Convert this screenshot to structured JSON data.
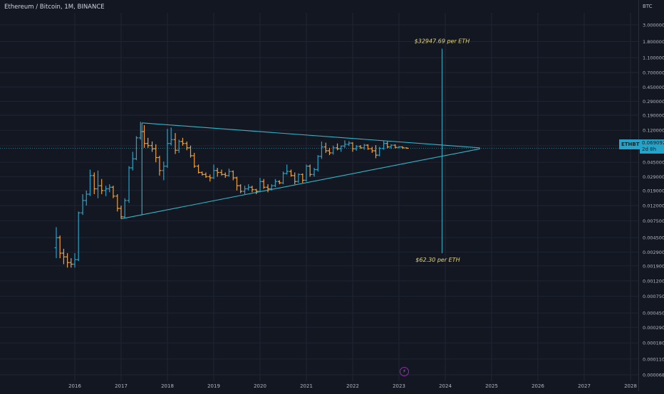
{
  "header": {
    "title": "Ethereum / Bitcoin, 1M, BINANCE",
    "currency": "BTC"
  },
  "last_price": {
    "symbol": "ETHBTC",
    "value": "0.069092",
    "countdown": "2d 8h"
  },
  "annotations": {
    "upper": "$32947.69 per ETH",
    "lower": "$62.30 per ETH"
  },
  "colors": {
    "background": "#131722",
    "grid": "#1f2433",
    "up_bar": "#26a3c9",
    "down_bar": "#f0a03c",
    "trendline": "#2fb7c9",
    "annotation_text": "#e6d77a"
  },
  "chart_data": {
    "type": "ohlc",
    "y_scale": "log",
    "y_ticks": [
      "3.000000",
      "1.800000",
      "1.100000",
      "0.700000",
      "0.450000",
      "0.290000",
      "0.190000",
      "0.120000",
      "0.075000",
      "0.045000",
      "0.029000",
      "0.019000",
      "0.012000",
      "0.007500",
      "0.004500",
      "0.002900",
      "0.001900",
      "0.001200",
      "0.000750",
      "0.000450",
      "0.000290",
      "0.000180",
      "0.000110",
      "0.000068"
    ],
    "x_ticks": [
      "2016",
      "2017",
      "2018",
      "2019",
      "2020",
      "2021",
      "2022",
      "2023",
      "2024",
      "2025",
      "2026",
      "2027",
      "2028"
    ],
    "ylim": [
      6.8e-05,
      3.0
    ],
    "xlim": [
      2015.4,
      2028.2
    ],
    "bars": [
      {
        "t": 2015.6,
        "o": 0.0033,
        "h": 0.0062,
        "l": 0.0024,
        "c": 0.0045
      },
      {
        "t": 2015.68,
        "o": 0.0045,
        "h": 0.0048,
        "l": 0.0024,
        "c": 0.0028
      },
      {
        "t": 2015.76,
        "o": 0.0028,
        "h": 0.0032,
        "l": 0.002,
        "c": 0.0025
      },
      {
        "t": 2015.84,
        "o": 0.0025,
        "h": 0.0028,
        "l": 0.0018,
        "c": 0.0021
      },
      {
        "t": 2015.92,
        "o": 0.0021,
        "h": 0.0024,
        "l": 0.0018,
        "c": 0.002
      },
      {
        "t": 2016.0,
        "o": 0.002,
        "h": 0.0028,
        "l": 0.0018,
        "c": 0.0023
      },
      {
        "t": 2016.08,
        "o": 0.0023,
        "h": 0.01,
        "l": 0.0022,
        "c": 0.0096
      },
      {
        "t": 2016.17,
        "o": 0.0096,
        "h": 0.017,
        "l": 0.009,
        "c": 0.014
      },
      {
        "t": 2016.25,
        "o": 0.014,
        "h": 0.019,
        "l": 0.012,
        "c": 0.017
      },
      {
        "t": 2016.33,
        "o": 0.017,
        "h": 0.036,
        "l": 0.016,
        "c": 0.03
      },
      {
        "t": 2016.42,
        "o": 0.03,
        "h": 0.033,
        "l": 0.017,
        "c": 0.02
      },
      {
        "t": 2016.5,
        "o": 0.02,
        "h": 0.035,
        "l": 0.015,
        "c": 0.022
      },
      {
        "t": 2016.58,
        "o": 0.022,
        "h": 0.027,
        "l": 0.017,
        "c": 0.019
      },
      {
        "t": 2016.67,
        "o": 0.019,
        "h": 0.022,
        "l": 0.016,
        "c": 0.02
      },
      {
        "t": 2016.75,
        "o": 0.02,
        "h": 0.023,
        "l": 0.018,
        "c": 0.021
      },
      {
        "t": 2016.83,
        "o": 0.021,
        "h": 0.022,
        "l": 0.015,
        "c": 0.016
      },
      {
        "t": 2016.92,
        "o": 0.016,
        "h": 0.017,
        "l": 0.01,
        "c": 0.011
      },
      {
        "t": 2017.0,
        "o": 0.011,
        "h": 0.012,
        "l": 0.008,
        "c": 0.0085
      },
      {
        "t": 2017.08,
        "o": 0.0085,
        "h": 0.015,
        "l": 0.0082,
        "c": 0.014
      },
      {
        "t": 2017.17,
        "o": 0.014,
        "h": 0.04,
        "l": 0.013,
        "c": 0.038
      },
      {
        "t": 2017.25,
        "o": 0.038,
        "h": 0.062,
        "l": 0.035,
        "c": 0.05
      },
      {
        "t": 2017.33,
        "o": 0.05,
        "h": 0.1,
        "l": 0.048,
        "c": 0.095
      },
      {
        "t": 2017.42,
        "o": 0.095,
        "h": 0.155,
        "l": 0.09,
        "c": 0.115
      },
      {
        "t": 2017.5,
        "o": 0.115,
        "h": 0.14,
        "l": 0.07,
        "c": 0.08
      },
      {
        "t": 2017.58,
        "o": 0.08,
        "h": 0.095,
        "l": 0.07,
        "c": 0.075
      },
      {
        "t": 2017.67,
        "o": 0.075,
        "h": 0.085,
        "l": 0.062,
        "c": 0.068
      },
      {
        "t": 2017.75,
        "o": 0.068,
        "h": 0.078,
        "l": 0.045,
        "c": 0.052
      },
      {
        "t": 2017.83,
        "o": 0.052,
        "h": 0.055,
        "l": 0.03,
        "c": 0.035
      },
      {
        "t": 2017.92,
        "o": 0.035,
        "h": 0.046,
        "l": 0.026,
        "c": 0.04
      },
      {
        "t": 2018.0,
        "o": 0.04,
        "h": 0.125,
        "l": 0.038,
        "c": 0.08
      },
      {
        "t": 2018.08,
        "o": 0.08,
        "h": 0.13,
        "l": 0.075,
        "c": 0.09
      },
      {
        "t": 2018.17,
        "o": 0.09,
        "h": 0.11,
        "l": 0.058,
        "c": 0.065
      },
      {
        "t": 2018.25,
        "o": 0.065,
        "h": 0.09,
        "l": 0.06,
        "c": 0.085
      },
      {
        "t": 2018.33,
        "o": 0.085,
        "h": 0.095,
        "l": 0.075,
        "c": 0.08
      },
      {
        "t": 2018.42,
        "o": 0.08,
        "h": 0.085,
        "l": 0.065,
        "c": 0.07
      },
      {
        "t": 2018.5,
        "o": 0.07,
        "h": 0.075,
        "l": 0.052,
        "c": 0.055
      },
      {
        "t": 2018.58,
        "o": 0.055,
        "h": 0.06,
        "l": 0.038,
        "c": 0.04
      },
      {
        "t": 2018.67,
        "o": 0.04,
        "h": 0.042,
        "l": 0.032,
        "c": 0.033
      },
      {
        "t": 2018.75,
        "o": 0.033,
        "h": 0.034,
        "l": 0.03,
        "c": 0.031
      },
      {
        "t": 2018.83,
        "o": 0.031,
        "h": 0.033,
        "l": 0.028,
        "c": 0.029
      },
      {
        "t": 2018.92,
        "o": 0.029,
        "h": 0.031,
        "l": 0.025,
        "c": 0.028
      },
      {
        "t": 2019.0,
        "o": 0.028,
        "h": 0.042,
        "l": 0.027,
        "c": 0.035
      },
      {
        "t": 2019.08,
        "o": 0.035,
        "h": 0.038,
        "l": 0.029,
        "c": 0.033
      },
      {
        "t": 2019.17,
        "o": 0.033,
        "h": 0.036,
        "l": 0.03,
        "c": 0.031
      },
      {
        "t": 2019.25,
        "o": 0.031,
        "h": 0.033,
        "l": 0.028,
        "c": 0.03
      },
      {
        "t": 2019.33,
        "o": 0.03,
        "h": 0.037,
        "l": 0.029,
        "c": 0.034
      },
      {
        "t": 2019.42,
        "o": 0.034,
        "h": 0.035,
        "l": 0.026,
        "c": 0.028
      },
      {
        "t": 2019.5,
        "o": 0.028,
        "h": 0.029,
        "l": 0.019,
        "c": 0.022
      },
      {
        "t": 2019.58,
        "o": 0.022,
        "h": 0.023,
        "l": 0.0175,
        "c": 0.0185
      },
      {
        "t": 2019.67,
        "o": 0.0185,
        "h": 0.022,
        "l": 0.017,
        "c": 0.02
      },
      {
        "t": 2019.75,
        "o": 0.02,
        "h": 0.023,
        "l": 0.019,
        "c": 0.021
      },
      {
        "t": 2019.83,
        "o": 0.021,
        "h": 0.022,
        "l": 0.018,
        "c": 0.0195
      },
      {
        "t": 2019.92,
        "o": 0.0195,
        "h": 0.02,
        "l": 0.017,
        "c": 0.0185
      },
      {
        "t": 2020.0,
        "o": 0.0185,
        "h": 0.028,
        "l": 0.018,
        "c": 0.025
      },
      {
        "t": 2020.08,
        "o": 0.025,
        "h": 0.027,
        "l": 0.02,
        "c": 0.021
      },
      {
        "t": 2020.17,
        "o": 0.021,
        "h": 0.023,
        "l": 0.018,
        "c": 0.02
      },
      {
        "t": 2020.25,
        "o": 0.02,
        "h": 0.023,
        "l": 0.019,
        "c": 0.022
      },
      {
        "t": 2020.33,
        "o": 0.022,
        "h": 0.027,
        "l": 0.021,
        "c": 0.025
      },
      {
        "t": 2020.42,
        "o": 0.025,
        "h": 0.026,
        "l": 0.023,
        "c": 0.024
      },
      {
        "t": 2020.5,
        "o": 0.024,
        "h": 0.034,
        "l": 0.023,
        "c": 0.032
      },
      {
        "t": 2020.58,
        "o": 0.032,
        "h": 0.042,
        "l": 0.031,
        "c": 0.034
      },
      {
        "t": 2020.67,
        "o": 0.034,
        "h": 0.036,
        "l": 0.029,
        "c": 0.03
      },
      {
        "t": 2020.75,
        "o": 0.03,
        "h": 0.033,
        "l": 0.023,
        "c": 0.025
      },
      {
        "t": 2020.83,
        "o": 0.025,
        "h": 0.032,
        "l": 0.024,
        "c": 0.031
      },
      {
        "t": 2020.92,
        "o": 0.031,
        "h": 0.032,
        "l": 0.024,
        "c": 0.026
      },
      {
        "t": 2021.0,
        "o": 0.026,
        "h": 0.042,
        "l": 0.025,
        "c": 0.04
      },
      {
        "t": 2021.08,
        "o": 0.04,
        "h": 0.042,
        "l": 0.029,
        "c": 0.031
      },
      {
        "t": 2021.17,
        "o": 0.031,
        "h": 0.038,
        "l": 0.029,
        "c": 0.036
      },
      {
        "t": 2021.25,
        "o": 0.036,
        "h": 0.056,
        "l": 0.034,
        "c": 0.054
      },
      {
        "t": 2021.33,
        "o": 0.054,
        "h": 0.085,
        "l": 0.05,
        "c": 0.072
      },
      {
        "t": 2021.42,
        "o": 0.072,
        "h": 0.082,
        "l": 0.06,
        "c": 0.064
      },
      {
        "t": 2021.5,
        "o": 0.064,
        "h": 0.07,
        "l": 0.056,
        "c": 0.06
      },
      {
        "t": 2021.58,
        "o": 0.06,
        "h": 0.075,
        "l": 0.057,
        "c": 0.07
      },
      {
        "t": 2021.67,
        "o": 0.07,
        "h": 0.08,
        "l": 0.065,
        "c": 0.068
      },
      {
        "t": 2021.75,
        "o": 0.068,
        "h": 0.075,
        "l": 0.062,
        "c": 0.074
      },
      {
        "t": 2021.83,
        "o": 0.074,
        "h": 0.088,
        "l": 0.07,
        "c": 0.078
      },
      {
        "t": 2021.92,
        "o": 0.078,
        "h": 0.086,
        "l": 0.074,
        "c": 0.081
      },
      {
        "t": 2022.0,
        "o": 0.081,
        "h": 0.083,
        "l": 0.062,
        "c": 0.068
      },
      {
        "t": 2022.08,
        "o": 0.068,
        "h": 0.076,
        "l": 0.064,
        "c": 0.073
      },
      {
        "t": 2022.17,
        "o": 0.073,
        "h": 0.076,
        "l": 0.068,
        "c": 0.07
      },
      {
        "t": 2022.25,
        "o": 0.07,
        "h": 0.079,
        "l": 0.066,
        "c": 0.076
      },
      {
        "t": 2022.33,
        "o": 0.076,
        "h": 0.078,
        "l": 0.066,
        "c": 0.068
      },
      {
        "t": 2022.42,
        "o": 0.068,
        "h": 0.072,
        "l": 0.06,
        "c": 0.064
      },
      {
        "t": 2022.5,
        "o": 0.064,
        "h": 0.076,
        "l": 0.051,
        "c": 0.056
      },
      {
        "t": 2022.58,
        "o": 0.056,
        "h": 0.072,
        "l": 0.054,
        "c": 0.069
      },
      {
        "t": 2022.67,
        "o": 0.069,
        "h": 0.086,
        "l": 0.066,
        "c": 0.08
      },
      {
        "t": 2022.75,
        "o": 0.08,
        "h": 0.085,
        "l": 0.069,
        "c": 0.072
      },
      {
        "t": 2022.83,
        "o": 0.072,
        "h": 0.078,
        "l": 0.068,
        "c": 0.076
      },
      {
        "t": 2022.92,
        "o": 0.076,
        "h": 0.078,
        "l": 0.069,
        "c": 0.071
      },
      {
        "t": 2023.0,
        "o": 0.071,
        "h": 0.074,
        "l": 0.069,
        "c": 0.072
      },
      {
        "t": 2023.08,
        "o": 0.072,
        "h": 0.073,
        "l": 0.068,
        "c": 0.07
      },
      {
        "t": 2023.17,
        "o": 0.07,
        "h": 0.071,
        "l": 0.068,
        "c": 0.0691
      }
    ],
    "trendlines": [
      {
        "name": "upper",
        "from": {
          "t": 2017.45,
          "v": 0.15
        },
        "to": {
          "t": 2024.75,
          "v": 0.07
        }
      },
      {
        "name": "lower",
        "from": {
          "t": 2017.0,
          "v": 0.008
        },
        "to": {
          "t": 2024.75,
          "v": 0.068
        }
      },
      {
        "name": "left-edge",
        "from": {
          "t": 2017.45,
          "v": 0.15
        },
        "to": {
          "t": 2017.45,
          "v": 0.009
        }
      }
    ],
    "vertical_marker": {
      "t": 2023.93,
      "from": 1.45,
      "to": 0.0028
    },
    "price_line": 0.069092,
    "grid": true
  }
}
